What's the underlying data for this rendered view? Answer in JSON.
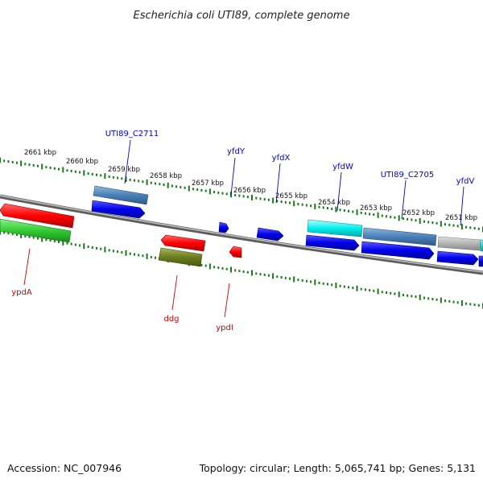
{
  "title": "Escherichia coli UTI89, complete genome",
  "footer": {
    "accession": "Accession: NC_007946",
    "summary": "Topology: circular; Length: 5,065,741 bp; Genes: 5,131"
  },
  "colors": {
    "forward_label": "#0000cc",
    "reverse_label": "#cc0000",
    "tick": "#1a7a1a",
    "backbone": "#888888"
  },
  "position_labels": [
    "2661 kbp",
    "2660 kbp",
    "2659 kbp",
    "2658 kbp",
    "2657 kbp",
    "2656 kbp",
    "2655 kbp",
    "2654 kbp",
    "2653 kbp",
    "2652 kbp",
    "2651 kbp"
  ],
  "forward_gene_labels": [
    "UTI89_C2711",
    "yfdY",
    "yfdX",
    "yfdW",
    "UTI89_C2705",
    "yfdV"
  ],
  "reverse_gene_labels": [
    "ypdA",
    "ddg",
    "ypdI"
  ]
}
